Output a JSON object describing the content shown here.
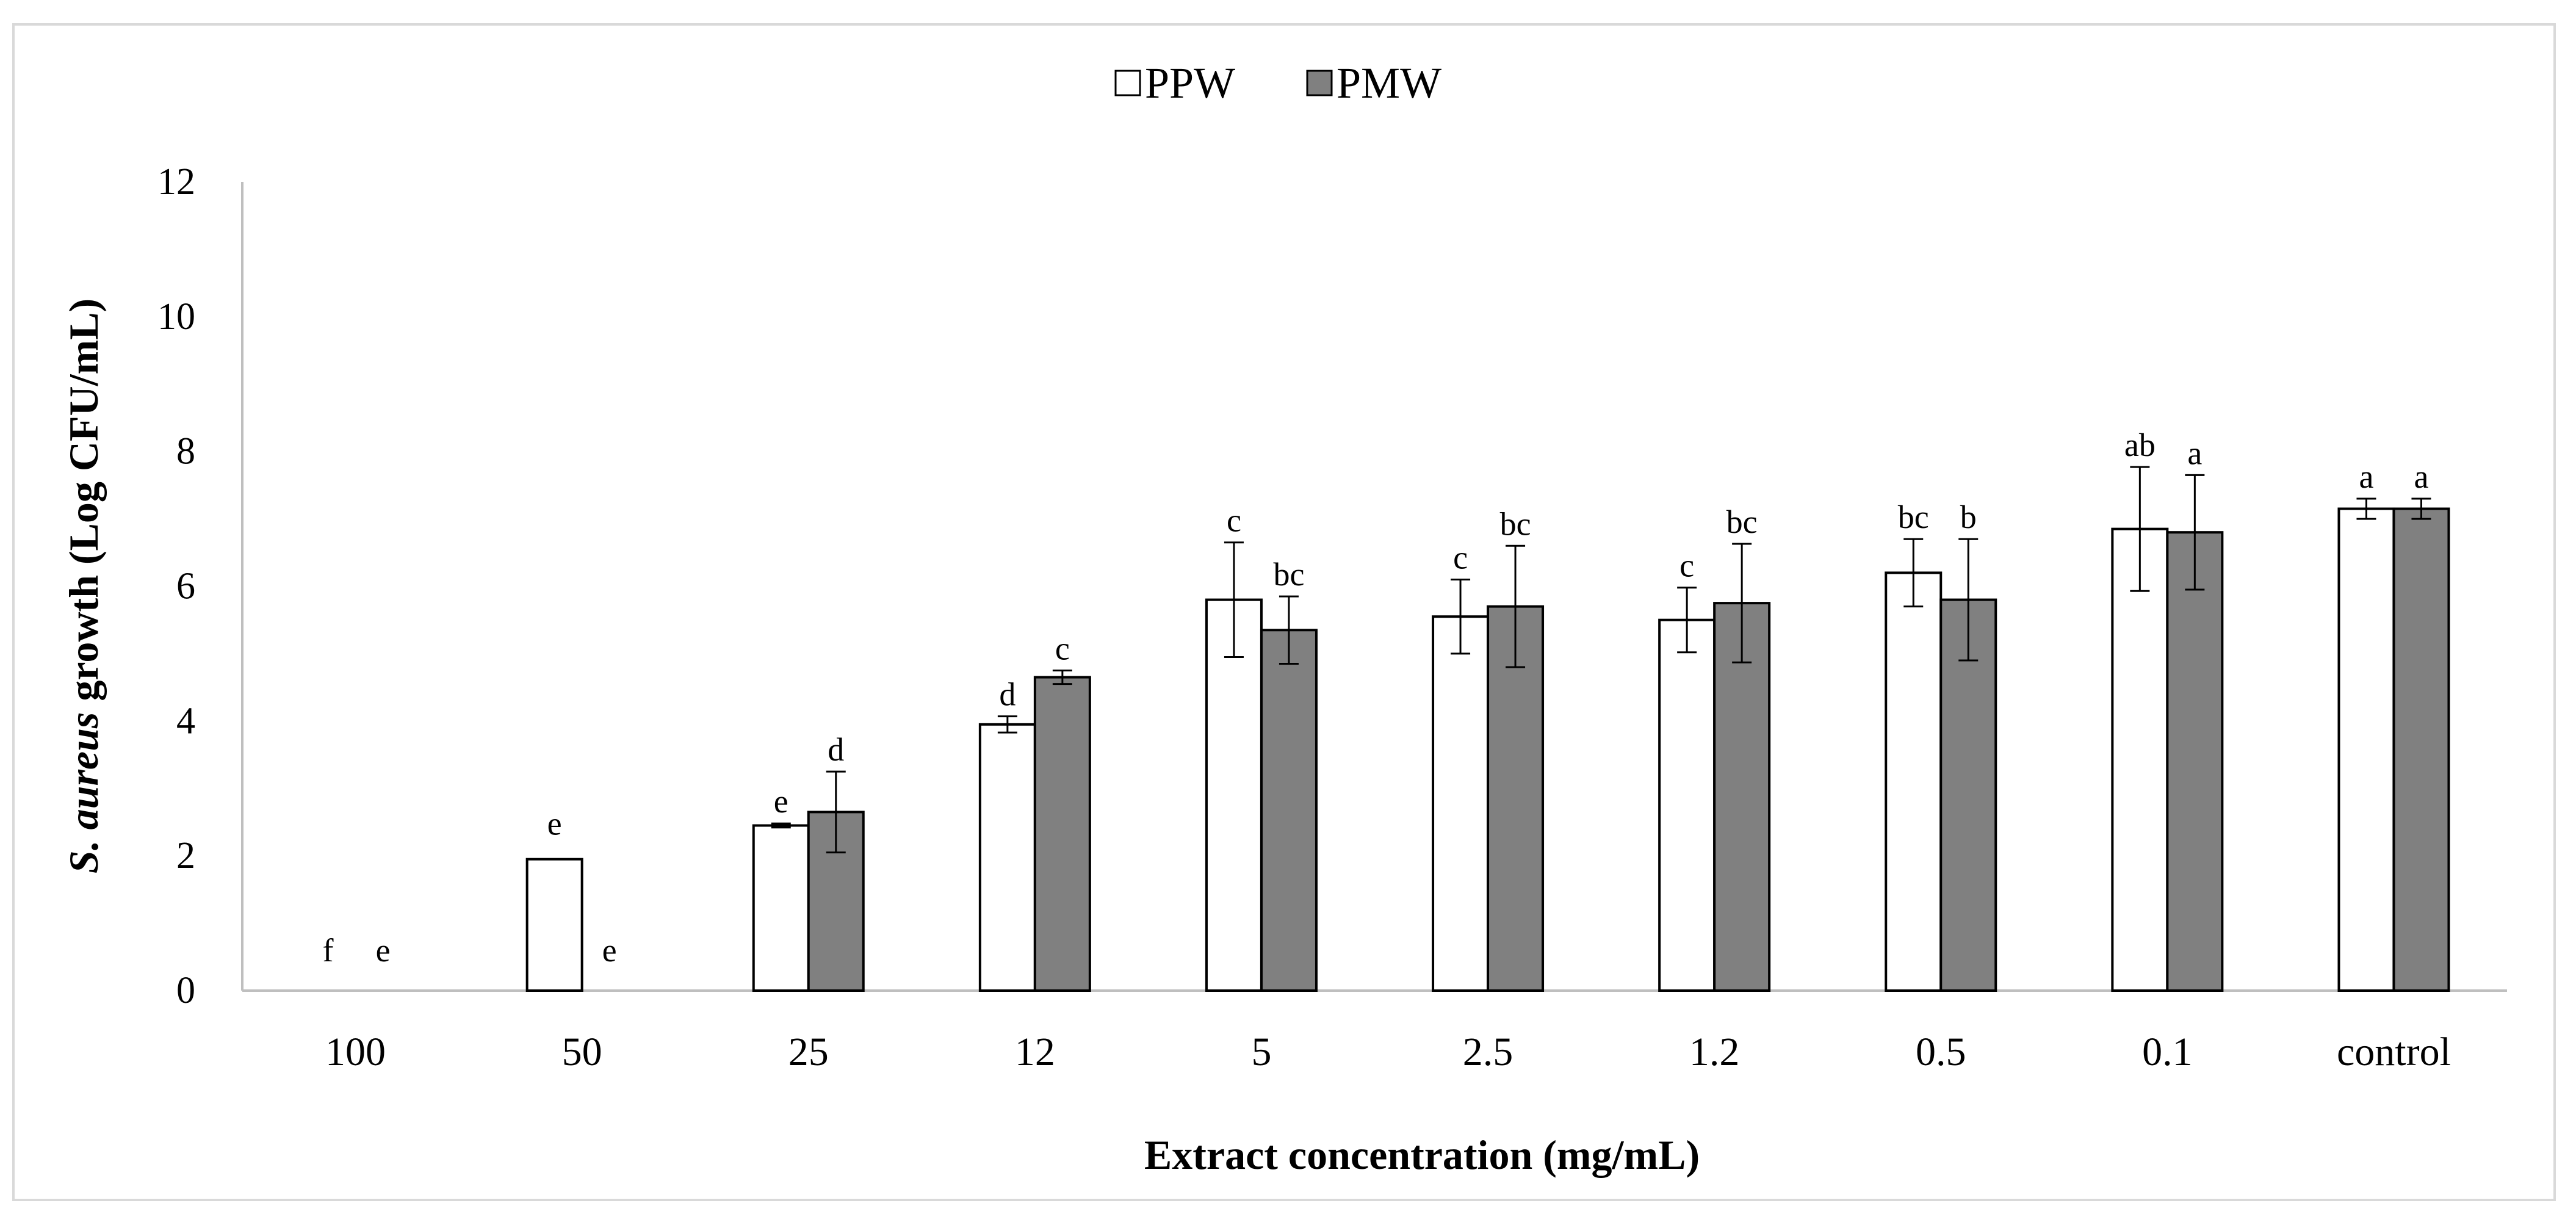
{
  "chart_data": {
    "type": "bar",
    "title": "",
    "xlabel": "Extract concentration (mg/mL)",
    "ylabel_italic": "S. aureus",
    "ylabel_rest": "growth (Log CFU/mL)",
    "ylim": [
      0,
      12
    ],
    "yticks": [
      "0",
      "2",
      "4",
      "6",
      "8",
      "10",
      "12"
    ],
    "categories": [
      "100",
      "50",
      "25",
      "12",
      "5",
      "2.5",
      "1.2",
      "0.5",
      "0.1",
      "control"
    ],
    "legend_position": "top-center",
    "series": [
      {
        "name": "PPW",
        "color": "#ffffff",
        "values": [
          0,
          1.95,
          2.45,
          3.95,
          5.8,
          5.55,
          5.5,
          6.2,
          6.85,
          7.15
        ],
        "errors": [
          0,
          0,
          0.03,
          0.12,
          0.85,
          0.55,
          0.48,
          0.5,
          0.92,
          0.15
        ],
        "labels": [
          "f",
          "e",
          "e",
          "d",
          "c",
          "c",
          "c",
          "bc",
          "ab",
          "a"
        ]
      },
      {
        "name": "PMW",
        "color": "#808080",
        "values": [
          0,
          0,
          2.65,
          4.65,
          5.35,
          5.7,
          5.75,
          5.8,
          6.8,
          7.15
        ],
        "errors": [
          0,
          0,
          0.6,
          0.1,
          0.5,
          0.9,
          0.88,
          0.9,
          0.85,
          0.15
        ],
        "labels": [
          "e",
          "e",
          "d",
          "c",
          "bc",
          "bc",
          "bc",
          "b",
          "a",
          "a"
        ]
      }
    ]
  }
}
